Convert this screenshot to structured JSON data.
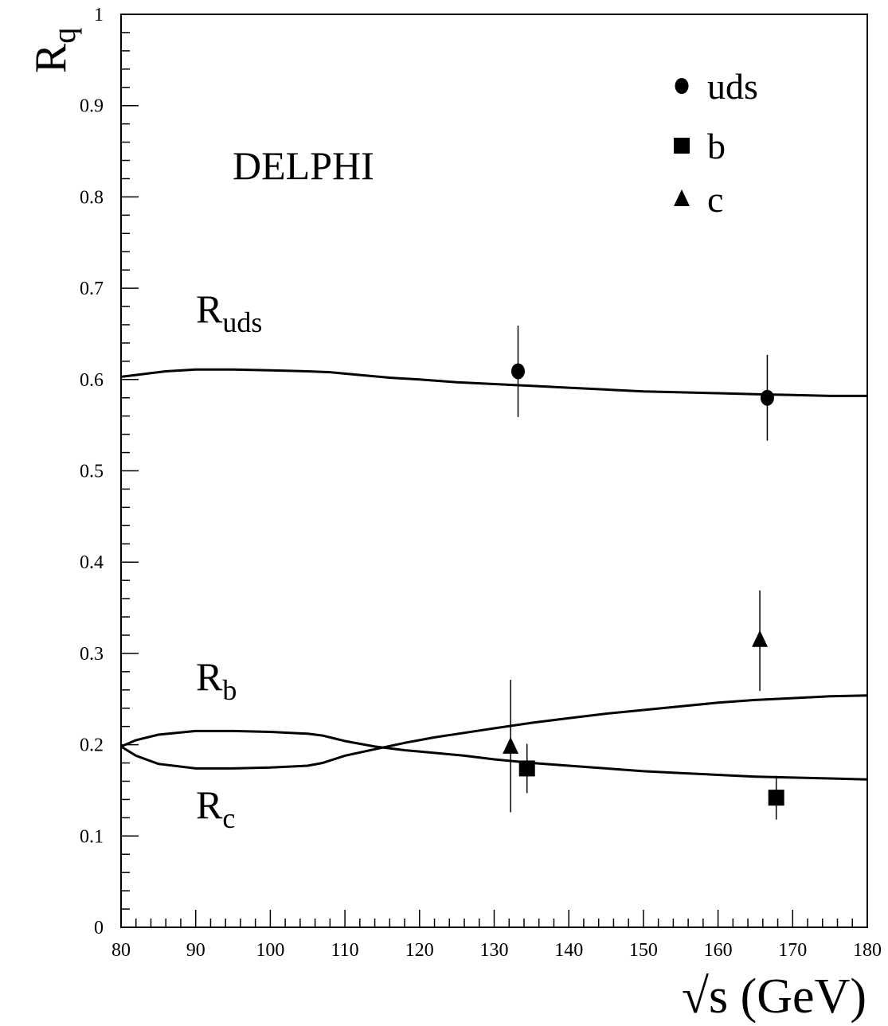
{
  "chart_data": {
    "type": "line",
    "title": "",
    "xlabel": "√s (GeV)",
    "ylabel": "R",
    "ylabel_sub": "q",
    "xlim": [
      80,
      180
    ],
    "ylim": [
      0,
      1
    ],
    "xticks": [
      80,
      90,
      100,
      110,
      120,
      130,
      140,
      150,
      160,
      170,
      180
    ],
    "yticks": [
      0,
      0.1,
      0.2,
      0.3,
      0.4,
      0.5,
      0.6,
      0.7,
      0.8,
      0.9,
      1
    ],
    "experiment_label": "DELPHI",
    "legend_position": "top-right",
    "curves": [
      {
        "label": "R",
        "label_sub": "uds",
        "x": [
          80,
          82,
          84,
          86,
          90,
          95,
          100,
          105,
          108,
          112,
          116,
          120,
          125,
          130,
          135,
          140,
          145,
          150,
          155,
          160,
          165,
          170,
          175,
          180
        ],
        "y": [
          0.603,
          0.605,
          0.607,
          0.609,
          0.611,
          0.611,
          0.61,
          0.609,
          0.608,
          0.605,
          0.602,
          0.6,
          0.597,
          0.595,
          0.593,
          0.591,
          0.589,
          0.587,
          0.586,
          0.585,
          0.584,
          0.583,
          0.582,
          0.582
        ]
      },
      {
        "label": "R",
        "label_sub": "b",
        "x": [
          80,
          82,
          85,
          90,
          95,
          100,
          105,
          107,
          110,
          114,
          118,
          122,
          126,
          130,
          135,
          140,
          145,
          150,
          155,
          160,
          165,
          170,
          175,
          180
        ],
        "y": [
          0.198,
          0.188,
          0.179,
          0.174,
          0.174,
          0.175,
          0.177,
          0.18,
          0.188,
          0.195,
          0.202,
          0.208,
          0.213,
          0.218,
          0.224,
          0.229,
          0.234,
          0.238,
          0.242,
          0.246,
          0.249,
          0.251,
          0.253,
          0.254
        ]
      },
      {
        "label": "R",
        "label_sub": "c",
        "x": [
          80,
          82,
          85,
          90,
          95,
          100,
          105,
          107,
          110,
          114,
          118,
          122,
          126,
          130,
          135,
          140,
          145,
          150,
          155,
          160,
          165,
          170,
          175,
          180
        ],
        "y": [
          0.198,
          0.205,
          0.211,
          0.215,
          0.215,
          0.214,
          0.212,
          0.21,
          0.204,
          0.198,
          0.194,
          0.191,
          0.188,
          0.184,
          0.18,
          0.177,
          0.174,
          0.171,
          0.169,
          0.167,
          0.165,
          0.164,
          0.163,
          0.162
        ]
      }
    ],
    "series": [
      {
        "name": "uds",
        "marker": "circle",
        "points": [
          {
            "x": 133.2,
            "y": 0.609,
            "y_low": 0.559,
            "y_high": 0.659
          },
          {
            "x": 166.6,
            "y": 0.58,
            "y_low": 0.533,
            "y_high": 0.627
          }
        ]
      },
      {
        "name": "b",
        "marker": "square",
        "points": [
          {
            "x": 134.4,
            "y": 0.174,
            "y_low": 0.147,
            "y_high": 0.201
          },
          {
            "x": 167.8,
            "y": 0.142,
            "y_low": 0.118,
            "y_high": 0.166
          }
        ]
      },
      {
        "name": "c",
        "marker": "triangle",
        "points": [
          {
            "x": 132.2,
            "y": 0.198,
            "y_low": 0.126,
            "y_high": 0.271
          },
          {
            "x": 165.6,
            "y": 0.315,
            "y_low": 0.259,
            "y_high": 0.369
          }
        ]
      }
    ]
  }
}
